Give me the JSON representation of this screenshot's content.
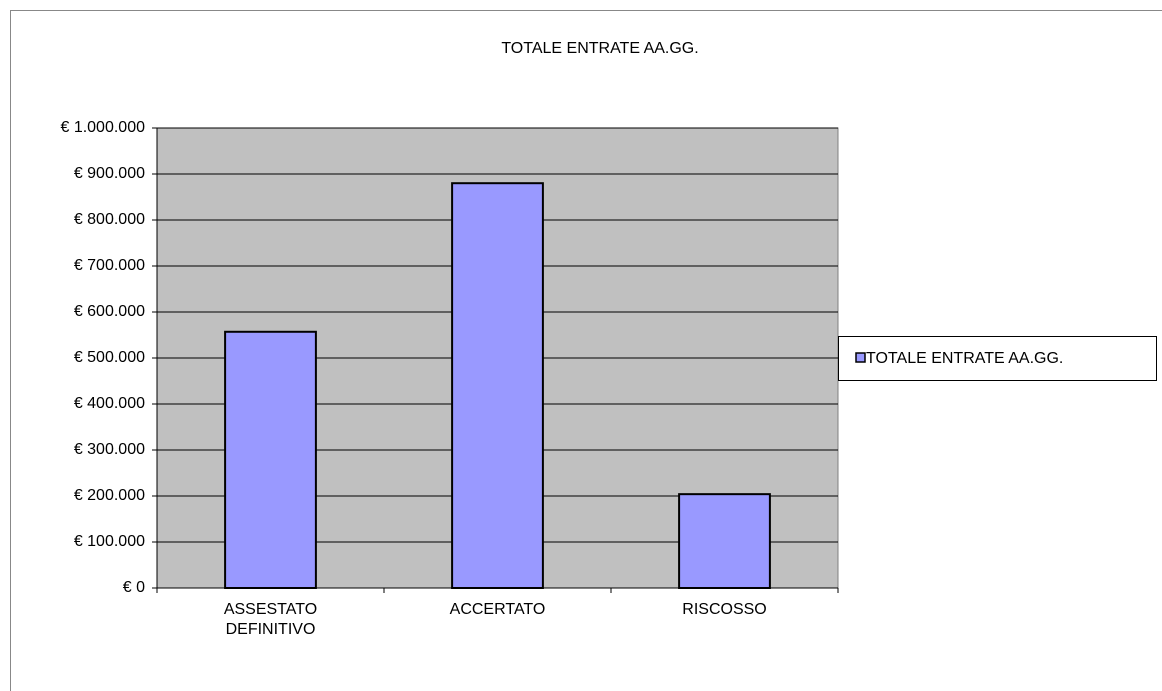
{
  "chart_data": {
    "type": "bar",
    "title": "TOTALE ENTRATE AA.GG.",
    "categories": [
      "ASSESTATO DEFINITIVO",
      "ACCERTATO",
      "RISCOSSO"
    ],
    "series": [
      {
        "name": "TOTALE ENTRATE AA.GG.",
        "color": "#9999ff",
        "values": [
          557000,
          880000,
          204000
        ]
      }
    ],
    "ylim": [
      0,
      1000000
    ],
    "yticks": [
      {
        "value": 0,
        "label": "€ 0"
      },
      {
        "value": 100000,
        "label": "€ 100.000"
      },
      {
        "value": 200000,
        "label": "€ 200.000"
      },
      {
        "value": 300000,
        "label": "€ 300.000"
      },
      {
        "value": 400000,
        "label": "€ 400.000"
      },
      {
        "value": 500000,
        "label": "€ 500.000"
      },
      {
        "value": 600000,
        "label": "€ 600.000"
      },
      {
        "value": 700000,
        "label": "€ 700.000"
      },
      {
        "value": 800000,
        "label": "€ 800.000"
      },
      {
        "value": 900000,
        "label": "€ 900.000"
      },
      {
        "value": 1000000,
        "label": "€ 1.000.000"
      }
    ],
    "grid": true,
    "legend": "right"
  }
}
